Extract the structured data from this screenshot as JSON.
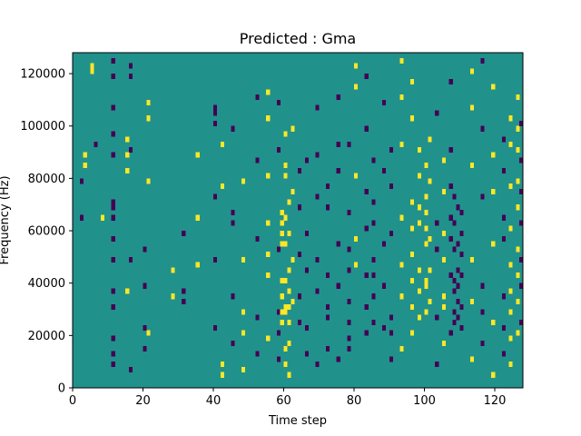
{
  "chart_data": {
    "type": "heatmap",
    "title": "Predicted : Gma",
    "xlabel": "Time step",
    "ylabel": "Frequency (Hz)",
    "xlim": [
      0,
      128
    ],
    "ylim": [
      0,
      128000
    ],
    "x_ticks": [
      0,
      20,
      40,
      60,
      80,
      100,
      120
    ],
    "y_ticks": [
      0,
      20000,
      40000,
      60000,
      80000,
      100000,
      120000
    ],
    "grid": false,
    "colormap": "viridis",
    "levels": [
      {
        "value": 0,
        "color": "#440154"
      },
      {
        "value": 1,
        "color": "#21918c"
      },
      {
        "value": 2,
        "color": "#fde725"
      }
    ],
    "background_value": 1,
    "n_time_steps": 128,
    "n_freq_bins": 64,
    "freq_bin_hz": 2000,
    "cells": [
      {
        "t": 2,
        "f_bins": [
          32,
          39
        ],
        "v": 0
      },
      {
        "t": 3,
        "f_bins": [
          42,
          44
        ],
        "v": 2
      },
      {
        "t": 5,
        "f_bins": [
          60,
          61
        ],
        "v": 2
      },
      {
        "t": 6,
        "f_bins": [
          46
        ],
        "v": 0
      },
      {
        "t": 8,
        "f_bins": [
          32
        ],
        "v": 2
      },
      {
        "t": 11,
        "f_bins": [
          4,
          6,
          9,
          15,
          18,
          24,
          28,
          32,
          34,
          35,
          44,
          48,
          53,
          59,
          62
        ],
        "v": 0
      },
      {
        "t": 15,
        "f_bins": [
          18,
          41,
          44,
          47
        ],
        "v": 2
      },
      {
        "t": 16,
        "f_bins": [
          3,
          24,
          45,
          59,
          61
        ],
        "v": 0
      },
      {
        "t": 20,
        "f_bins": [
          7,
          11,
          19,
          26
        ],
        "v": 0
      },
      {
        "t": 21,
        "f_bins": [
          10,
          39,
          51,
          54
        ],
        "v": 2
      },
      {
        "t": 28,
        "f_bins": [
          17,
          22
        ],
        "v": 2
      },
      {
        "t": 31,
        "f_bins": [
          16,
          18,
          29
        ],
        "v": 0
      },
      {
        "t": 35,
        "f_bins": [
          23,
          32,
          44
        ],
        "v": 2
      },
      {
        "t": 40,
        "f_bins": [
          11,
          24,
          36,
          50,
          52,
          53
        ],
        "v": 0
      },
      {
        "t": 42,
        "f_bins": [
          2,
          4,
          38,
          46
        ],
        "v": 2
      },
      {
        "t": 45,
        "f_bins": [
          8,
          17,
          31,
          33,
          49
        ],
        "v": 0
      },
      {
        "t": 48,
        "f_bins": [
          3,
          10,
          14,
          24,
          39
        ],
        "v": 2
      },
      {
        "t": 52,
        "f_bins": [
          6,
          13,
          28,
          43,
          55
        ],
        "v": 0
      },
      {
        "t": 55,
        "f_bins": [
          9,
          21,
          25,
          31,
          40,
          51,
          56
        ],
        "v": 2
      },
      {
        "t": 58,
        "f_bins": [
          5,
          10,
          14,
          26,
          45,
          54
        ],
        "v": 0
      },
      {
        "t": 59,
        "f_bins": [
          12,
          14,
          17,
          20,
          27,
          29,
          31,
          33
        ],
        "v": 2
      },
      {
        "t": 60,
        "f_bins": [
          4,
          7,
          14,
          15,
          20,
          27,
          32,
          40,
          42,
          48
        ],
        "v": 2
      },
      {
        "t": 61,
        "f_bins": [
          2,
          8,
          12,
          15,
          18,
          22,
          29,
          35
        ],
        "v": 2
      },
      {
        "t": 62,
        "f_bins": [
          16,
          24,
          37,
          49
        ],
        "v": 2
      },
      {
        "t": 64,
        "f_bins": [
          12,
          17,
          25,
          34,
          41
        ],
        "v": 0
      },
      {
        "t": 66,
        "f_bins": [
          6,
          11,
          22,
          29,
          43
        ],
        "v": 0
      },
      {
        "t": 69,
        "f_bins": [
          4,
          18,
          24,
          36,
          44,
          53
        ],
        "v": 0
      },
      {
        "t": 72,
        "f_bins": [
          7,
          13,
          15,
          21,
          34,
          38
        ],
        "v": 0
      },
      {
        "t": 75,
        "f_bins": [
          5,
          19,
          27,
          41,
          46,
          55
        ],
        "v": 0
      },
      {
        "t": 78,
        "f_bins": [
          7,
          9,
          12,
          16,
          22,
          26,
          33,
          46
        ],
        "v": 0
      },
      {
        "t": 80,
        "f_bins": [
          23,
          28,
          40,
          57,
          61
        ],
        "v": 2
      },
      {
        "t": 83,
        "f_bins": [
          10,
          15,
          21,
          30,
          37,
          49,
          59
        ],
        "v": 0
      },
      {
        "t": 85,
        "f_bins": [
          12,
          17,
          21,
          24,
          31,
          35,
          43
        ],
        "v": 0
      },
      {
        "t": 88,
        "f_bins": [
          11,
          19,
          27,
          41,
          54
        ],
        "v": 0
      },
      {
        "t": 90,
        "f_bins": [
          5,
          10,
          13,
          29,
          38,
          45
        ],
        "v": 0
      },
      {
        "t": 93,
        "f_bins": [
          7,
          17,
          23,
          32,
          46,
          55,
          62
        ],
        "v": 2
      },
      {
        "t": 96,
        "f_bins": [
          10,
          15,
          20,
          25,
          30,
          35,
          51,
          58
        ],
        "v": 2
      },
      {
        "t": 98,
        "f_bins": [
          13,
          18,
          22,
          31,
          34,
          40,
          45
        ],
        "v": 2
      },
      {
        "t": 100,
        "f_bins": [
          14,
          19,
          20,
          27,
          30,
          33,
          36,
          42
        ],
        "v": 2
      },
      {
        "t": 101,
        "f_bins": [
          16,
          22,
          28,
          39,
          47
        ],
        "v": 2
      },
      {
        "t": 103,
        "f_bins": [
          4,
          13,
          26,
          31,
          52
        ],
        "v": 0
      },
      {
        "t": 105,
        "f_bins": [
          8,
          15,
          17,
          24,
          29,
          37,
          43
        ],
        "v": 2
      },
      {
        "t": 107,
        "f_bins": [
          10,
          21,
          28,
          32,
          38,
          45,
          58
        ],
        "v": 0
      },
      {
        "t": 108,
        "f_bins": [
          12,
          14,
          18,
          20,
          26,
          31,
          36
        ],
        "v": 0
      },
      {
        "t": 109,
        "f_bins": [
          13,
          16,
          19,
          22,
          27,
          34
        ],
        "v": 0
      },
      {
        "t": 110,
        "f_bins": [
          11,
          15,
          21,
          25,
          29,
          33
        ],
        "v": 0
      },
      {
        "t": 113,
        "f_bins": [
          5,
          16,
          24,
          42,
          53,
          60
        ],
        "v": 2
      },
      {
        "t": 116,
        "f_bins": [
          8,
          14,
          19,
          36,
          49,
          62
        ],
        "v": 0
      },
      {
        "t": 119,
        "f_bins": [
          2,
          12,
          27,
          37,
          44,
          57
        ],
        "v": 2
      },
      {
        "t": 122,
        "f_bins": [
          6,
          11,
          17,
          28,
          32,
          41,
          47
        ],
        "v": 0
      },
      {
        "t": 124,
        "f_bins": [
          4,
          9,
          14,
          18,
          23,
          30,
          38,
          46,
          51
        ],
        "v": 2
      },
      {
        "t": 126,
        "f_bins": [
          10,
          16,
          21,
          26,
          34,
          39,
          45,
          49,
          55
        ],
        "v": 2
      },
      {
        "t": 127,
        "f_bins": [
          12,
          19,
          24,
          31,
          37,
          43,
          50
        ],
        "v": 0
      }
    ]
  }
}
